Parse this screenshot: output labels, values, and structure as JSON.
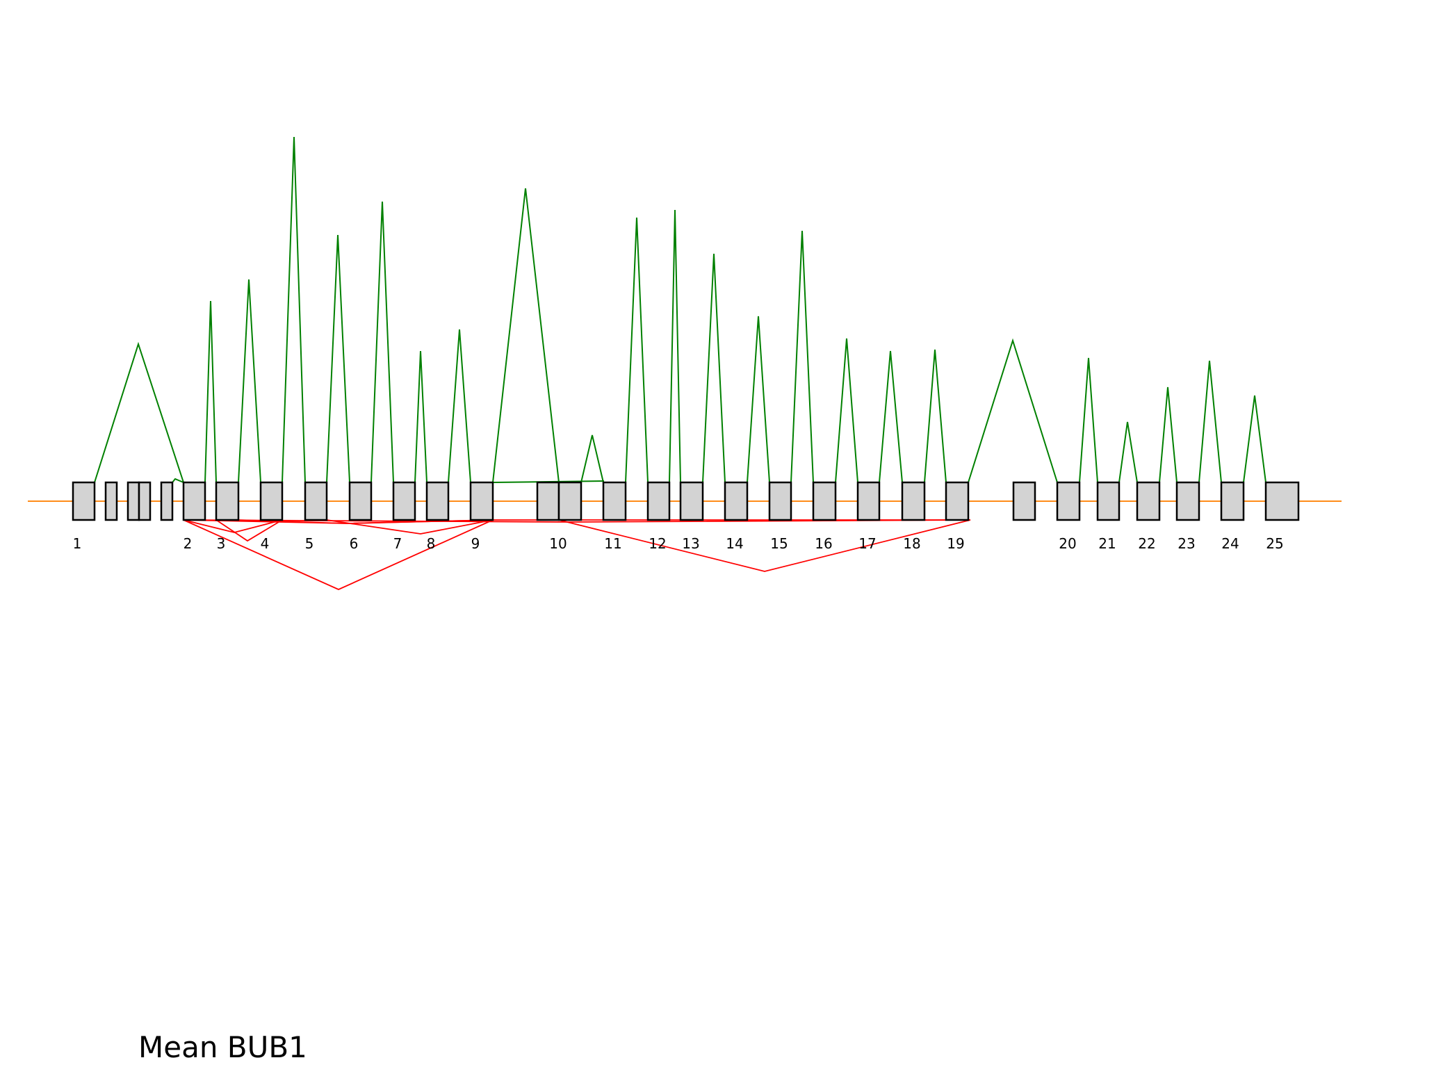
{
  "title": "Mean BUB1",
  "colors": {
    "backbone": "#ff8c1a",
    "exon_fill": "#d3d3d3",
    "exon_stroke": "#000000",
    "inclusion_junction": "#008000",
    "exclusion_junction": "#ff0000"
  },
  "exon_labels": [
    "1",
    "2",
    "3",
    "4",
    "5",
    "6",
    "7",
    "8",
    "9",
    "10",
    "11",
    "12",
    "13",
    "14",
    "15",
    "16",
    "17",
    "18",
    "19",
    "20",
    "21",
    "22",
    "23",
    "24",
    "25"
  ]
}
